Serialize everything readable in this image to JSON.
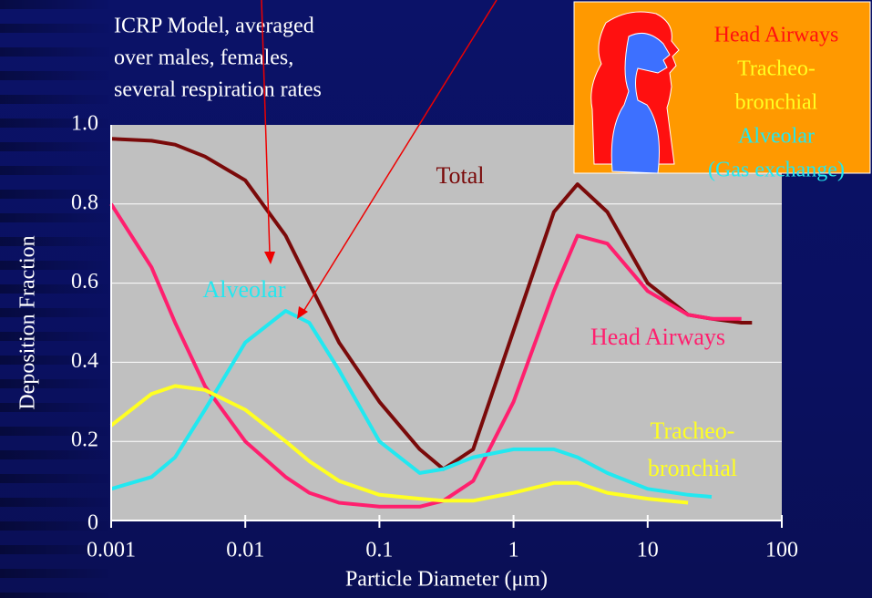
{
  "chart_data": {
    "type": "line",
    "annotation_lines": [
      "ICRP Model, averaged",
      "over males, females,",
      "several respiration rates"
    ],
    "x_label": "Particle Diameter (μm)",
    "y_label": "Deposition Fraction",
    "x_scale": "log",
    "xlim": [
      0.001,
      100
    ],
    "xticks": [
      0.001,
      0.01,
      0.1,
      1,
      10,
      100
    ],
    "ylim": [
      0,
      1
    ],
    "yticks": [
      0,
      0.2,
      0.4,
      0.6,
      0.8,
      {
        "value": 1,
        "label": "1.0"
      }
    ],
    "grid": true,
    "x": [
      0.001,
      0.002,
      0.003,
      0.005,
      0.01,
      0.02,
      0.03,
      0.05,
      0.1,
      0.2,
      0.3,
      0.5,
      1,
      2,
      3,
      5,
      10,
      20,
      30,
      50,
      60
    ],
    "series": [
      {
        "label_lines": [
          "Total"
        ],
        "color": "#7a0a0a",
        "values": [
          0.965,
          0.96,
          0.95,
          0.92,
          0.86,
          0.72,
          0.6,
          0.45,
          0.3,
          0.18,
          0.13,
          0.18,
          0.48,
          0.78,
          0.85,
          0.78,
          0.6,
          0.52,
          0.51,
          0.5,
          0.5
        ]
      },
      {
        "label_lines": [
          "Head Airways"
        ],
        "color": "#ff1f6e",
        "values": [
          0.8,
          0.64,
          0.5,
          0.34,
          0.2,
          0.11,
          0.07,
          0.045,
          0.035,
          0.035,
          0.05,
          0.1,
          0.3,
          0.58,
          0.72,
          0.7,
          0.58,
          0.52,
          0.51,
          0.51,
          null
        ]
      },
      {
        "label_lines": [
          "Alveolar"
        ],
        "color": "#22e8f0",
        "values": [
          0.08,
          0.11,
          0.16,
          0.28,
          0.45,
          0.53,
          0.5,
          0.38,
          0.2,
          0.12,
          0.13,
          0.16,
          0.18,
          0.18,
          0.16,
          0.12,
          0.08,
          0.065,
          0.06,
          null,
          null
        ]
      },
      {
        "label_lines": [
          "Tracheo-",
          "bronchial"
        ],
        "color": "#ffff22",
        "values": [
          0.24,
          0.32,
          0.34,
          0.33,
          0.28,
          0.2,
          0.15,
          0.1,
          0.065,
          0.055,
          0.05,
          0.05,
          0.07,
          0.095,
          0.095,
          0.07,
          0.055,
          0.045,
          null,
          null,
          null
        ]
      }
    ],
    "inset_labels": [
      {
        "text": "Head Airways",
        "color": "#ff1010"
      },
      {
        "text": "Tracheo-",
        "color": "#ffff22"
      },
      {
        "text": "bronchial",
        "color": "#ffff22"
      },
      {
        "text": "Alveolar",
        "color": "#22e8f0"
      },
      {
        "text": "(Gas exchange)",
        "color": "#22e8f0"
      }
    ]
  }
}
